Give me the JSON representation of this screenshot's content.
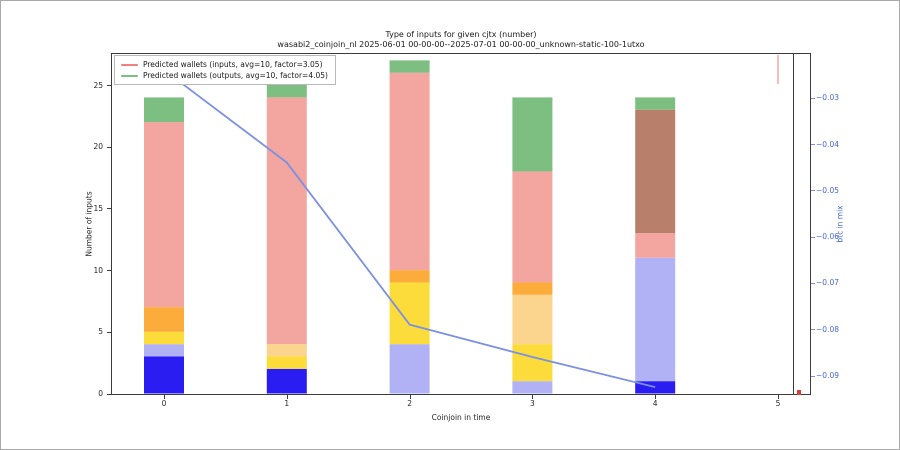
{
  "figure": {
    "title": "Type of inputs for given cjtx (number)",
    "subtitle": "wasabi2_coinjoin_nl 2025-06-01 00-00-00--2025-07-01 00-00-00_unknown-static-100-1utxo"
  },
  "axes": {
    "xlabel": "Coinjoin in time",
    "ylabel_left": "Number of inputs",
    "ylabel_right": "btc in mix",
    "x_tick_labels": [
      "0",
      "1",
      "2",
      "3",
      "4",
      "5"
    ],
    "y_tick_labels_left": [
      "0",
      "5",
      "10",
      "15",
      "20",
      "25"
    ],
    "y_tick_values_left": [
      0,
      5,
      10,
      15,
      20,
      25
    ],
    "y_tick_labels_right": [
      "−0.03",
      "−0.04",
      "−0.05",
      "−0.06",
      "−0.07",
      "−0.08",
      "−0.09"
    ],
    "y_tick_values_right": [
      -0.03,
      -0.04,
      -0.05,
      -0.06,
      -0.07,
      -0.08,
      -0.09
    ]
  },
  "legend": {
    "items": [
      {
        "label": "Predicted wallets (inputs, avg=10, factor=3.05)",
        "color": "#f08080"
      },
      {
        "label": "Predicted wallets (outputs, avg=10, factor=4.05)",
        "color": "#7dbe81"
      }
    ]
  },
  "chart_data": {
    "type": "bar",
    "stacked": true,
    "title": "Type of inputs for given cjtx (number)",
    "xlabel": "Coinjoin in time",
    "ylabel": "Number of inputs",
    "ylabel_secondary": "btc in mix",
    "categories": [
      0,
      1,
      2,
      3,
      4,
      5
    ],
    "ylim_left": [
      -0.12,
      27.6
    ],
    "ylim_right": [
      -0.0942,
      -0.0203
    ],
    "xlim": [
      -0.43,
      5.12
    ],
    "grid": false,
    "legend_position": "upper left",
    "segment_colors": {
      "blue": "#2a1df1",
      "periwinkle": "#b1b2f5",
      "yellow": "#fcdc3a",
      "peach": "#fbd48e",
      "orange": "#fbac3a",
      "salmon": "#f3a5a0",
      "brown": "#b8806a",
      "green": "#7dbe81"
    },
    "bars": [
      {
        "x": 0,
        "total": 24,
        "segments": [
          [
            "blue",
            3
          ],
          [
            "periwinkle",
            1
          ],
          [
            "yellow",
            1
          ],
          [
            "orange",
            2
          ],
          [
            "salmon",
            15
          ],
          [
            "green",
            2
          ]
        ]
      },
      {
        "x": 1,
        "total": 26,
        "segments": [
          [
            "blue",
            2
          ],
          [
            "yellow",
            1
          ],
          [
            "peach",
            1
          ],
          [
            "salmon",
            20
          ],
          [
            "green",
            2
          ]
        ]
      },
      {
        "x": 2,
        "total": 27,
        "segments": [
          [
            "periwinkle",
            4
          ],
          [
            "yellow",
            5
          ],
          [
            "orange",
            1
          ],
          [
            "salmon",
            16
          ],
          [
            "green",
            1
          ]
        ]
      },
      {
        "x": 3,
        "total": 24,
        "segments": [
          [
            "periwinkle",
            1
          ],
          [
            "yellow",
            3
          ],
          [
            "peach",
            4
          ],
          [
            "orange",
            1
          ],
          [
            "salmon",
            9
          ],
          [
            "green",
            6
          ]
        ]
      },
      {
        "x": 4,
        "total": 24,
        "segments": [
          [
            "blue",
            1
          ],
          [
            "periwinkle",
            10
          ],
          [
            "salmon",
            2
          ],
          [
            "brown",
            10
          ],
          [
            "green",
            1
          ]
        ]
      },
      {
        "x": 5,
        "total": 0,
        "segments": []
      }
    ],
    "thin_pink_segment": {
      "x": 5,
      "y_from": 25.1,
      "y_to": 27.45,
      "color": "#f8bcba"
    },
    "line_series": {
      "name": "btc in mix",
      "axis": "right",
      "color": "#7b90e4",
      "x": [
        0,
        1,
        2,
        3,
        4
      ],
      "values": [
        -0.024,
        -0.044,
        -0.079,
        -0.086,
        -0.0925
      ]
    },
    "red_marker": {
      "color": "#dd3a34",
      "position": "bottom of right sub-panel"
    }
  }
}
